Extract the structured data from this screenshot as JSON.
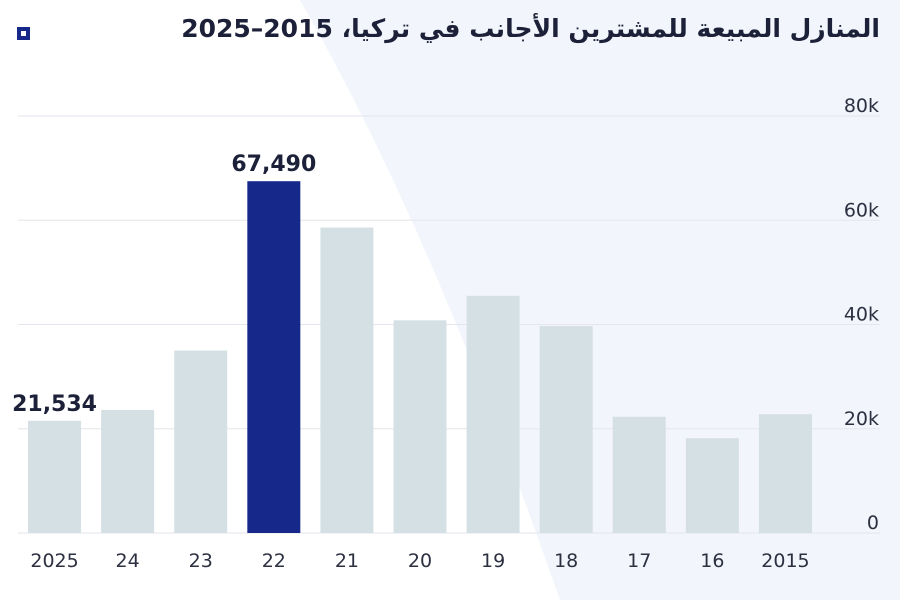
{
  "title": "المنازل المبيعة للمشترين الأجانب في تركيا، 2015–2025",
  "colors": {
    "bar": "#d5e0e5",
    "highlight": "#16298a",
    "grid": "#e3e6ec",
    "text": "#1c2038",
    "background_shape": "#f2f5fb"
  },
  "icon": "square-dot-icon",
  "chart_data": {
    "type": "bar",
    "title": "المنازل المبيعة للمشترين الأجانب في تركيا، 2015–2025",
    "xlabel": "",
    "ylabel": "",
    "categories": [
      "2025",
      "24",
      "23",
      "22",
      "21",
      "20",
      "19",
      "18",
      "17",
      "16",
      "2015"
    ],
    "values": [
      21534,
      23600,
      35000,
      67490,
      58600,
      40800,
      45500,
      39700,
      22300,
      18200,
      22800
    ],
    "highlight_index": 3,
    "data_labels": [
      {
        "index": 0,
        "text": "21,534"
      },
      {
        "index": 3,
        "text": "67,490"
      }
    ],
    "ylim": [
      0,
      80000
    ],
    "yticks": [
      0,
      20000,
      40000,
      60000,
      80000
    ],
    "ytick_labels": [
      "0",
      "20k",
      "40k",
      "60k",
      "80k"
    ],
    "y_axis_position": "right",
    "grid": true,
    "legend": "none"
  }
}
